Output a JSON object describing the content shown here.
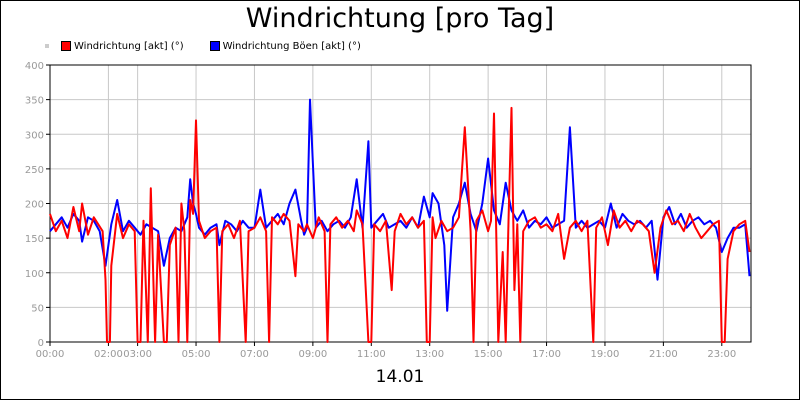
{
  "chart_data": {
    "type": "line",
    "title": "Windrichtung [pro Tag]",
    "xlabel": "14.01",
    "ylabel": "",
    "ylim": [
      0,
      400
    ],
    "yticks": [
      0,
      50,
      100,
      150,
      200,
      250,
      300,
      350,
      400
    ],
    "xlim": [
      0,
      24
    ],
    "xticks": [
      {
        "v": 0,
        "label": "00:00"
      },
      {
        "v": 2,
        "label": "02:00"
      },
      {
        "v": 3,
        "label": "03:00"
      },
      {
        "v": 5,
        "label": "05:00"
      },
      {
        "v": 7,
        "label": "07:00"
      },
      {
        "v": 9,
        "label": "09:00"
      },
      {
        "v": 11,
        "label": "11:00"
      },
      {
        "v": 13,
        "label": "13:00"
      },
      {
        "v": 15,
        "label": "15:00"
      },
      {
        "v": 17,
        "label": "17:00"
      },
      {
        "v": 19,
        "label": "19:00"
      },
      {
        "v": 21,
        "label": "21:00"
      },
      {
        "v": 23,
        "label": "23:00"
      }
    ],
    "grid": true,
    "legend_position": "top-left",
    "series": [
      {
        "name": "Windrichtung [akt] (°)",
        "color": "#ff0000",
        "points": [
          [
            0,
            185
          ],
          [
            0.2,
            160
          ],
          [
            0.4,
            175
          ],
          [
            0.6,
            150
          ],
          [
            0.8,
            195
          ],
          [
            1.0,
            160
          ],
          [
            1.1,
            200
          ],
          [
            1.3,
            155
          ],
          [
            1.5,
            180
          ],
          [
            1.8,
            160
          ],
          [
            1.9,
            90
          ],
          [
            1.95,
            0
          ],
          [
            2.05,
            0
          ],
          [
            2.1,
            110
          ],
          [
            2.3,
            185
          ],
          [
            2.5,
            150
          ],
          [
            2.7,
            170
          ],
          [
            2.9,
            160
          ],
          [
            3.0,
            0
          ],
          [
            3.1,
            0
          ],
          [
            3.2,
            175
          ],
          [
            3.35,
            0
          ],
          [
            3.45,
            222
          ],
          [
            3.6,
            0
          ],
          [
            3.7,
            155
          ],
          [
            3.9,
            0
          ],
          [
            4.0,
            0
          ],
          [
            4.1,
            140
          ],
          [
            4.3,
            165
          ],
          [
            4.4,
            0
          ],
          [
            4.5,
            200
          ],
          [
            4.6,
            160
          ],
          [
            4.7,
            0
          ],
          [
            4.8,
            205
          ],
          [
            4.9,
            185
          ],
          [
            5.0,
            320
          ],
          [
            5.1,
            175
          ],
          [
            5.3,
            150
          ],
          [
            5.5,
            160
          ],
          [
            5.7,
            165
          ],
          [
            5.8,
            0
          ],
          [
            5.9,
            160
          ],
          [
            6.1,
            170
          ],
          [
            6.3,
            150
          ],
          [
            6.5,
            175
          ],
          [
            6.7,
            0
          ],
          [
            6.8,
            160
          ],
          [
            7.0,
            165
          ],
          [
            7.2,
            180
          ],
          [
            7.4,
            160
          ],
          [
            7.5,
            0
          ],
          [
            7.6,
            180
          ],
          [
            7.8,
            170
          ],
          [
            8.0,
            185
          ],
          [
            8.2,
            175
          ],
          [
            8.4,
            95
          ],
          [
            8.5,
            170
          ],
          [
            8.7,
            160
          ],
          [
            8.8,
            170
          ],
          [
            9.0,
            150
          ],
          [
            9.2,
            180
          ],
          [
            9.4,
            160
          ],
          [
            9.5,
            0
          ],
          [
            9.6,
            170
          ],
          [
            9.8,
            180
          ],
          [
            10.0,
            165
          ],
          [
            10.2,
            175
          ],
          [
            10.4,
            160
          ],
          [
            10.5,
            190
          ],
          [
            10.7,
            170
          ],
          [
            10.9,
            0
          ],
          [
            11.0,
            0
          ],
          [
            11.1,
            170
          ],
          [
            11.3,
            160
          ],
          [
            11.5,
            175
          ],
          [
            11.7,
            75
          ],
          [
            11.8,
            160
          ],
          [
            12.0,
            185
          ],
          [
            12.2,
            170
          ],
          [
            12.4,
            180
          ],
          [
            12.6,
            165
          ],
          [
            12.8,
            175
          ],
          [
            12.9,
            0
          ],
          [
            13.0,
            0
          ],
          [
            13.1,
            180
          ],
          [
            13.2,
            150
          ],
          [
            13.4,
            175
          ],
          [
            13.6,
            160
          ],
          [
            13.8,
            165
          ],
          [
            14.0,
            180
          ],
          [
            14.2,
            310
          ],
          [
            14.4,
            160
          ],
          [
            14.5,
            0
          ],
          [
            14.6,
            175
          ],
          [
            14.8,
            190
          ],
          [
            15.0,
            160
          ],
          [
            15.1,
            175
          ],
          [
            15.2,
            330
          ],
          [
            15.35,
            0
          ],
          [
            15.5,
            130
          ],
          [
            15.6,
            0
          ],
          [
            15.7,
            180
          ],
          [
            15.8,
            338
          ],
          [
            15.9,
            75
          ],
          [
            16.0,
            170
          ],
          [
            16.1,
            0
          ],
          [
            16.2,
            160
          ],
          [
            16.4,
            175
          ],
          [
            16.6,
            180
          ],
          [
            16.8,
            165
          ],
          [
            17.0,
            170
          ],
          [
            17.2,
            160
          ],
          [
            17.4,
            185
          ],
          [
            17.6,
            120
          ],
          [
            17.8,
            165
          ],
          [
            18.0,
            175
          ],
          [
            18.2,
            160
          ],
          [
            18.4,
            175
          ],
          [
            18.6,
            0
          ],
          [
            18.7,
            165
          ],
          [
            18.9,
            180
          ],
          [
            19.1,
            140
          ],
          [
            19.3,
            190
          ],
          [
            19.5,
            165
          ],
          [
            19.7,
            175
          ],
          [
            19.9,
            160
          ],
          [
            20.1,
            175
          ],
          [
            20.3,
            170
          ],
          [
            20.5,
            160
          ],
          [
            20.7,
            100
          ],
          [
            20.9,
            165
          ],
          [
            21.1,
            190
          ],
          [
            21.3,
            170
          ],
          [
            21.5,
            175
          ],
          [
            21.7,
            160
          ],
          [
            21.9,
            185
          ],
          [
            22.1,
            165
          ],
          [
            22.3,
            150
          ],
          [
            22.5,
            160
          ],
          [
            22.7,
            170
          ],
          [
            22.9,
            175
          ],
          [
            23.0,
            0
          ],
          [
            23.1,
            0
          ],
          [
            23.2,
            120
          ],
          [
            23.4,
            160
          ],
          [
            23.6,
            170
          ],
          [
            23.8,
            175
          ],
          [
            23.95,
            130
          ]
        ]
      },
      {
        "name": "Windrichtung Böen [akt] (°)",
        "color": "#0000ff",
        "points": [
          [
            0,
            160
          ],
          [
            0.2,
            170
          ],
          [
            0.4,
            180
          ],
          [
            0.6,
            165
          ],
          [
            0.8,
            185
          ],
          [
            1.0,
            175
          ],
          [
            1.1,
            145
          ],
          [
            1.3,
            180
          ],
          [
            1.5,
            175
          ],
          [
            1.7,
            160
          ],
          [
            1.9,
            110
          ],
          [
            2.1,
            170
          ],
          [
            2.3,
            205
          ],
          [
            2.5,
            160
          ],
          [
            2.7,
            175
          ],
          [
            2.9,
            165
          ],
          [
            3.1,
            155
          ],
          [
            3.3,
            170
          ],
          [
            3.5,
            165
          ],
          [
            3.7,
            160
          ],
          [
            3.9,
            110
          ],
          [
            4.1,
            150
          ],
          [
            4.3,
            165
          ],
          [
            4.5,
            160
          ],
          [
            4.7,
            180
          ],
          [
            4.8,
            235
          ],
          [
            4.9,
            200
          ],
          [
            5.0,
            185
          ],
          [
            5.1,
            165
          ],
          [
            5.3,
            155
          ],
          [
            5.5,
            165
          ],
          [
            5.7,
            170
          ],
          [
            5.8,
            140
          ],
          [
            6.0,
            175
          ],
          [
            6.2,
            170
          ],
          [
            6.4,
            160
          ],
          [
            6.6,
            175
          ],
          [
            6.8,
            165
          ],
          [
            7.0,
            165
          ],
          [
            7.2,
            220
          ],
          [
            7.4,
            165
          ],
          [
            7.6,
            175
          ],
          [
            7.8,
            185
          ],
          [
            8.0,
            170
          ],
          [
            8.2,
            200
          ],
          [
            8.4,
            220
          ],
          [
            8.6,
            175
          ],
          [
            8.7,
            155
          ],
          [
            8.8,
            165
          ],
          [
            8.9,
            350
          ],
          [
            9.1,
            165
          ],
          [
            9.3,
            175
          ],
          [
            9.5,
            160
          ],
          [
            9.7,
            170
          ],
          [
            9.9,
            175
          ],
          [
            10.1,
            165
          ],
          [
            10.3,
            180
          ],
          [
            10.5,
            235
          ],
          [
            10.7,
            165
          ],
          [
            10.9,
            290
          ],
          [
            11.0,
            165
          ],
          [
            11.2,
            175
          ],
          [
            11.4,
            185
          ],
          [
            11.6,
            165
          ],
          [
            11.8,
            170
          ],
          [
            12.0,
            175
          ],
          [
            12.2,
            165
          ],
          [
            12.4,
            180
          ],
          [
            12.6,
            165
          ],
          [
            12.8,
            210
          ],
          [
            13.0,
            180
          ],
          [
            13.1,
            215
          ],
          [
            13.3,
            200
          ],
          [
            13.5,
            140
          ],
          [
            13.6,
            45
          ],
          [
            13.8,
            180
          ],
          [
            14.0,
            200
          ],
          [
            14.2,
            230
          ],
          [
            14.4,
            185
          ],
          [
            14.6,
            160
          ],
          [
            14.8,
            200
          ],
          [
            15.0,
            265
          ],
          [
            15.2,
            190
          ],
          [
            15.4,
            170
          ],
          [
            15.6,
            230
          ],
          [
            15.8,
            190
          ],
          [
            16.0,
            175
          ],
          [
            16.2,
            190
          ],
          [
            16.4,
            165
          ],
          [
            16.6,
            175
          ],
          [
            16.8,
            170
          ],
          [
            17.0,
            180
          ],
          [
            17.2,
            165
          ],
          [
            17.4,
            170
          ],
          [
            17.6,
            175
          ],
          [
            17.8,
            310
          ],
          [
            18.0,
            165
          ],
          [
            18.2,
            175
          ],
          [
            18.4,
            165
          ],
          [
            18.6,
            170
          ],
          [
            18.8,
            175
          ],
          [
            19.0,
            165
          ],
          [
            19.2,
            200
          ],
          [
            19.4,
            165
          ],
          [
            19.6,
            185
          ],
          [
            19.8,
            175
          ],
          [
            20.0,
            170
          ],
          [
            20.2,
            175
          ],
          [
            20.4,
            165
          ],
          [
            20.6,
            175
          ],
          [
            20.8,
            90
          ],
          [
            21.0,
            180
          ],
          [
            21.2,
            195
          ],
          [
            21.4,
            170
          ],
          [
            21.6,
            185
          ],
          [
            21.8,
            165
          ],
          [
            22.0,
            175
          ],
          [
            22.2,
            180
          ],
          [
            22.4,
            170
          ],
          [
            22.6,
            175
          ],
          [
            22.8,
            165
          ],
          [
            23.0,
            130
          ],
          [
            23.2,
            150
          ],
          [
            23.4,
            165
          ],
          [
            23.6,
            165
          ],
          [
            23.8,
            170
          ],
          [
            23.95,
            95
          ]
        ]
      }
    ]
  }
}
